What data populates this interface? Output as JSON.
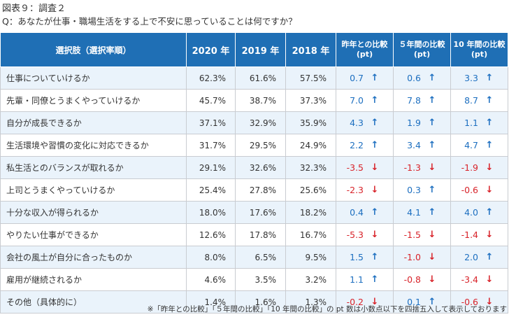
{
  "figure_label": "図表９：調査２",
  "question": "Q：あなたが仕事・職場生活をする上で不安に思っていることは何ですか？",
  "headers": {
    "choice": "選択肢（選択率順）",
    "y2020": "2020 年",
    "y2019": "2019 年",
    "y2018": "2018 年",
    "diff1_line1": "昨年との比較",
    "diff1_line2": "(pt)",
    "diff5_line1": "５年間の比較",
    "diff5_line2": "(pt)",
    "diff10_line1": "10 年間の比較",
    "diff10_line2": "(pt)"
  },
  "rows": [
    {
      "name": "仕事についていけるか",
      "y2020": "62.3%",
      "y2019": "61.6%",
      "y2018": "57.5%",
      "d1": "0.7",
      "d1_dir": "up",
      "d5": "0.6",
      "d5_dir": "up",
      "d10": "3.3",
      "d10_dir": "up"
    },
    {
      "name": "先輩・同僚とうまくやっていけるか",
      "y2020": "45.7%",
      "y2019": "38.7%",
      "y2018": "37.3%",
      "d1": "7.0",
      "d1_dir": "up",
      "d5": "7.8",
      "d5_dir": "up",
      "d10": "8.7",
      "d10_dir": "up"
    },
    {
      "name": "自分が成長できるか",
      "y2020": "37.1%",
      "y2019": "32.9%",
      "y2018": "35.9%",
      "d1": "4.3",
      "d1_dir": "up",
      "d5": "1.9",
      "d5_dir": "up",
      "d10": "1.1",
      "d10_dir": "up"
    },
    {
      "name": "生活環境や習慣の変化に対応できるか",
      "y2020": "31.7%",
      "y2019": "29.5%",
      "y2018": "24.9%",
      "d1": "2.2",
      "d1_dir": "up",
      "d5": "3.4",
      "d5_dir": "up",
      "d10": "4.7",
      "d10_dir": "up"
    },
    {
      "name": "私生活とのバランスが取れるか",
      "y2020": "29.1%",
      "y2019": "32.6%",
      "y2018": "32.3%",
      "d1": "-3.5",
      "d1_dir": "down",
      "d5": "-1.3",
      "d5_dir": "down",
      "d10": "-1.9",
      "d10_dir": "down"
    },
    {
      "name": "上司とうまくやっていけるか",
      "y2020": "25.4%",
      "y2019": "27.8%",
      "y2018": "25.6%",
      "d1": "-2.3",
      "d1_dir": "down",
      "d5": "0.3",
      "d5_dir": "up",
      "d10": "-0.6",
      "d10_dir": "down"
    },
    {
      "name": "十分な収入が得られるか",
      "y2020": "18.0%",
      "y2019": "17.6%",
      "y2018": "18.2%",
      "d1": "0.4",
      "d1_dir": "up",
      "d5": "4.1",
      "d5_dir": "up",
      "d10": "4.0",
      "d10_dir": "up"
    },
    {
      "name": "やりたい仕事ができるか",
      "y2020": "12.6%",
      "y2019": "17.8%",
      "y2018": "16.7%",
      "d1": "-5.3",
      "d1_dir": "down",
      "d5": "-1.5",
      "d5_dir": "down",
      "d10": "-1.4",
      "d10_dir": "down"
    },
    {
      "name": "会社の風土が自分に合ったものか",
      "y2020": "8.0%",
      "y2019": "6.5%",
      "y2018": "9.5%",
      "d1": "1.5",
      "d1_dir": "up",
      "d5": "-1.0",
      "d5_dir": "down",
      "d10": "2.0",
      "d10_dir": "up"
    },
    {
      "name": "雇用が継続されるか",
      "y2020": "4.6%",
      "y2019": "3.5%",
      "y2018": "3.2%",
      "d1": "1.1",
      "d1_dir": "up",
      "d5": "-0.8",
      "d5_dir": "down",
      "d10": "-3.4",
      "d10_dir": "down"
    },
    {
      "name": "その他（具体的に）",
      "y2020": "1.4%",
      "y2019": "1.6%",
      "y2018": "1.3%",
      "d1": "-0.2",
      "d1_dir": "down",
      "d5": "0.1",
      "d5_dir": "up",
      "d10": "-0.6",
      "d10_dir": "down"
    }
  ],
  "arrow_glyphs": {
    "up": "↑",
    "down": "↓"
  },
  "colors": {
    "header_bg": "#1f6fb5",
    "row_alt_bg": "#eaf3fb",
    "positive": "#1d6fc0",
    "negative": "#d8232a"
  },
  "footnote": "※「昨年との比較」「５年間の比較」「10 年間の比較」の pt 数は小数点以下を四捨五入して表示しております"
}
